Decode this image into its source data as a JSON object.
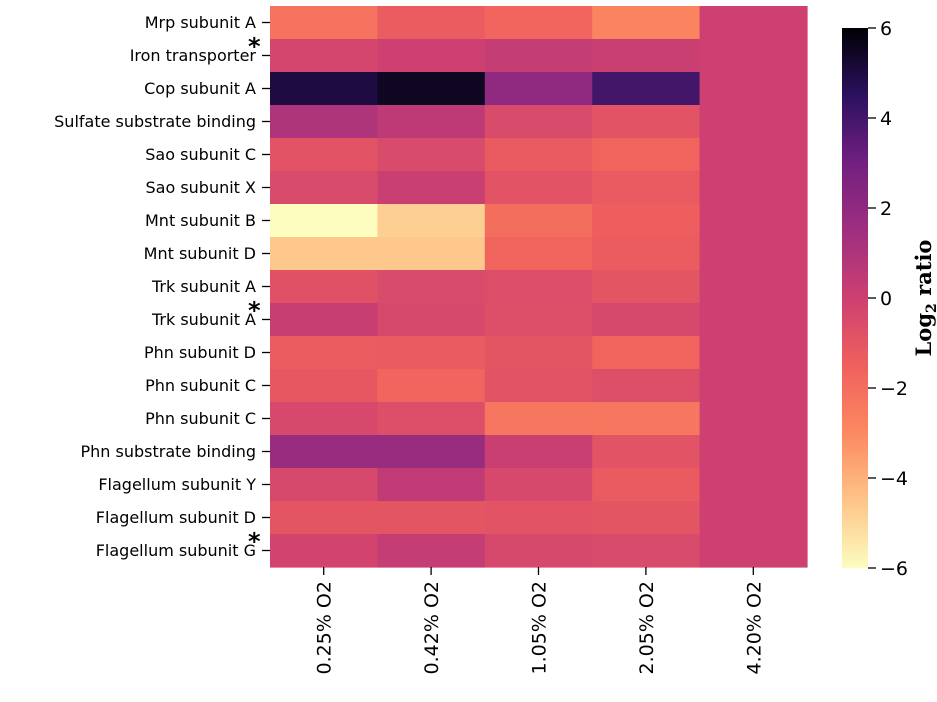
{
  "chart_data": {
    "type": "heatmap",
    "colormap": "magma_r",
    "rows": [
      {
        "label": "Mrp subunit A",
        "marker": ""
      },
      {
        "label": "Iron transporter",
        "marker": "*"
      },
      {
        "label": "Cop subunit A",
        "marker": ""
      },
      {
        "label": "Sulfate substrate binding",
        "marker": ""
      },
      {
        "label": "Sao subunit C",
        "marker": ""
      },
      {
        "label": "Sao subunit X",
        "marker": ""
      },
      {
        "label": "Mnt subunit B",
        "marker": ""
      },
      {
        "label": "Mnt subunit D",
        "marker": ""
      },
      {
        "label": "Trk subunit A",
        "marker": ""
      },
      {
        "label": "Trk subunit A",
        "marker": "*"
      },
      {
        "label": "Phn subunit D",
        "marker": ""
      },
      {
        "label": "Phn subunit C",
        "marker": ""
      },
      {
        "label": "Phn subunit C",
        "marker": ""
      },
      {
        "label": "Phn substrate binding",
        "marker": ""
      },
      {
        "label": "Flagellum subunit Y",
        "marker": ""
      },
      {
        "label": "Flagellum subunit D",
        "marker": ""
      },
      {
        "label": "Flagellum subunit G",
        "marker": "*"
      }
    ],
    "columns": [
      "0.25% O2",
      "0.42% O2",
      "1.05% O2",
      "2.05% O2",
      "4.20% O2"
    ],
    "values": [
      [
        -2.2,
        -1.3,
        -1.7,
        -2.8,
        0.0
      ],
      [
        -0.3,
        0.0,
        0.3,
        0.1,
        0.0
      ],
      [
        5.0,
        5.5,
        2.0,
        4.0,
        0.0
      ],
      [
        1.0,
        0.5,
        -0.5,
        -0.9,
        0.0
      ],
      [
        -0.9,
        -0.5,
        -1.2,
        -1.6,
        0.0
      ],
      [
        -0.5,
        0.1,
        -0.9,
        -1.2,
        0.0
      ],
      [
        -6.0,
        -4.8,
        -2.0,
        -1.4,
        0.0
      ],
      [
        -4.6,
        -4.6,
        -1.6,
        -1.3,
        0.0
      ],
      [
        -0.8,
        -0.5,
        -0.6,
        -1.0,
        0.0
      ],
      [
        0.2,
        -0.4,
        -0.7,
        -0.4,
        0.0
      ],
      [
        -1.3,
        -1.2,
        -1.0,
        -1.6,
        0.0
      ],
      [
        -1.1,
        -1.7,
        -0.9,
        -0.7,
        0.0
      ],
      [
        -0.4,
        -0.7,
        -2.3,
        -2.3,
        0.0
      ],
      [
        1.7,
        1.7,
        0.1,
        -0.9,
        0.0
      ],
      [
        -0.4,
        0.4,
        -0.4,
        -1.2,
        0.0
      ],
      [
        -1.0,
        -1.0,
        -0.9,
        -1.0,
        0.0
      ],
      [
        -0.2,
        0.3,
        -0.4,
        -0.5,
        0.0
      ]
    ],
    "colorbar": {
      "title_main": "Log",
      "title_sub": "2",
      "title_rest": " ratio",
      "vmin": -6,
      "vmax": 6,
      "ticks": [
        -6,
        -4,
        -2,
        0,
        2,
        4,
        6
      ],
      "tick_labels": [
        "−6",
        "−4",
        "−2",
        "0",
        "2",
        "4",
        "6"
      ]
    }
  }
}
